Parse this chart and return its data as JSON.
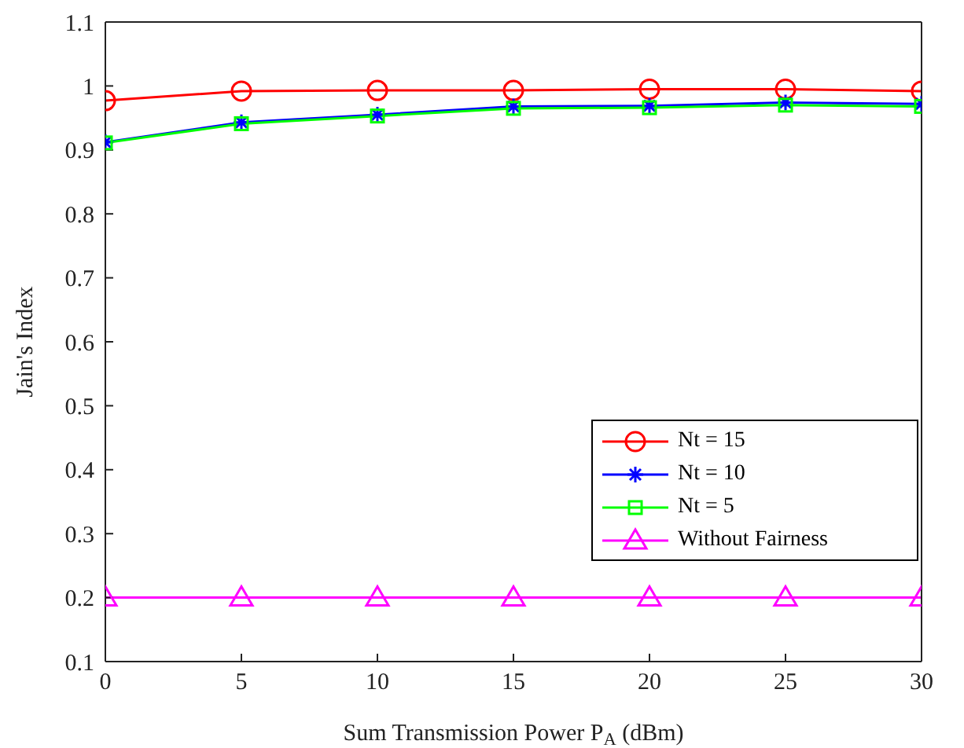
{
  "chart_data": {
    "type": "line",
    "xlabel": "Sum Transmission Power P$_{A}$ (dBm)",
    "ylabel": "Jain's Index",
    "x": [
      0,
      5,
      10,
      15,
      20,
      25,
      30
    ],
    "series": [
      {
        "name": "Nt = 15",
        "color": "#ff0000",
        "marker": "circle",
        "values": [
          0.977,
          0.992,
          0.993,
          0.993,
          0.995,
          0.995,
          0.992
        ]
      },
      {
        "name": "Nt = 10",
        "color": "#0000ff",
        "marker": "cross",
        "values": [
          0.912,
          0.943,
          0.955,
          0.968,
          0.969,
          0.974,
          0.972
        ]
      },
      {
        "name": "Nt = 5",
        "color": "#00ff00",
        "marker": "square",
        "values": [
          0.911,
          0.941,
          0.953,
          0.965,
          0.966,
          0.97,
          0.968
        ]
      },
      {
        "name": "Without Fairness",
        "color": "#ff00ff",
        "marker": "triangle",
        "values": [
          0.2,
          0.2,
          0.2,
          0.2,
          0.2,
          0.2,
          0.2
        ]
      }
    ],
    "xlim": [
      0,
      30
    ],
    "xticks": [
      0,
      5,
      10,
      15,
      20,
      25,
      30
    ],
    "ylim": [
      0.1,
      1.1
    ],
    "yticks": [
      0.1,
      0.2,
      0.3,
      0.4,
      0.5,
      0.6,
      0.7,
      0.8,
      0.9,
      1,
      1.1
    ],
    "grid": false,
    "legend": "bottom right",
    "line_style": "solid"
  }
}
